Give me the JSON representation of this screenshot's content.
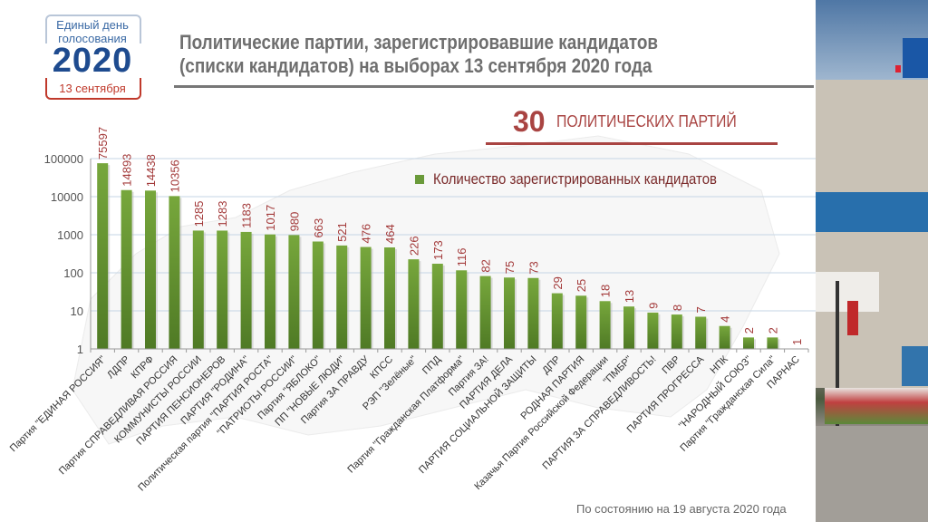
{
  "logo": {
    "line1": "Единый день",
    "line2": "голосования",
    "year": "2020",
    "date": "13 сентября"
  },
  "header": {
    "title_line1": "Политические партии, зарегистрировавшие кандидатов",
    "title_line2": "(списки кандидатов) на выборах 13 сентября 2020 года"
  },
  "headline": {
    "number": "30",
    "text": "ПОЛИТИЧЕСКИХ ПАРТИЙ"
  },
  "footer": {
    "note": "По состоянию на 19 августа 2020 года"
  },
  "colors": {
    "bar": "#5e8a2c",
    "bar_light": "#77a73c",
    "label": "#a33a3a",
    "accent": "#a94442",
    "grid": "#c6d6e6"
  },
  "chart_data": {
    "type": "bar",
    "title": "Политические партии, зарегистрировавшие кандидатов (списки кандидатов) на выборах 13 сентября 2020 года",
    "xlabel": "",
    "ylabel": "",
    "yscale": "log",
    "ylim": [
      1,
      100000
    ],
    "yticks": [
      1,
      10,
      100,
      1000,
      10000,
      100000
    ],
    "ytick_labels": [
      "1",
      "10",
      "100",
      "1000",
      "10000",
      "100000"
    ],
    "grid": true,
    "legend": {
      "position": "top-right",
      "entries": [
        "Количество зарегистрированных кандидатов"
      ]
    },
    "categories": [
      "Партия \"ЕДИНАЯ РОССИЯ\"",
      "ЛДПР",
      "КПРФ",
      "Партия СПРАВЕДЛИВАЯ РОССИЯ",
      "КОММУНИСТЫ РОССИИ",
      "ПАРТИЯ ПЕНСИОНЕРОВ",
      "ПАРТИЯ \"РОДИНА\"",
      "Политическая партия \"ПАРТИЯ РОСТА\"",
      "\"ПАТРИОТЫ РОССИИ\"",
      "Партия \"ЯБЛОКО\"",
      "ПП \"НОВЫЕ ЛЮДИ\"",
      "Партия ЗА ПРАВДУ",
      "КПСС",
      "РЭП \"Зелёные\"",
      "ППД",
      "Партия \"Гражданская Платформа\"",
      "Партия ЗА!",
      "ПАРТИЯ ДЕЛА",
      "ПАРТИЯ СОЦИАЛЬНОЙ ЗАЩИТЫ",
      "ДПР",
      "РОДНАЯ ПАРТИЯ",
      "Казачья Партия Российской Федерации",
      "\"ПМБР\"",
      "ПАРТИЯ ЗА СПРАВЕДЛИВОСТЬ!",
      "ПВР",
      "ПАРТИЯ ПРОГРЕССА",
      "НПК",
      "\"НАРОДНЫЙ СОЮЗ\"",
      "Партия \"Гражданская Сила\"",
      "ПАРНАС"
    ],
    "series": [
      {
        "name": "Количество зарегистрированных кандидатов",
        "values": [
          75597,
          14893,
          14438,
          10356,
          1285,
          1283,
          1183,
          1017,
          980,
          663,
          521,
          476,
          464,
          226,
          173,
          116,
          82,
          75,
          73,
          29,
          25,
          18,
          13,
          9,
          8,
          7,
          4,
          2,
          2,
          1
        ]
      }
    ]
  }
}
